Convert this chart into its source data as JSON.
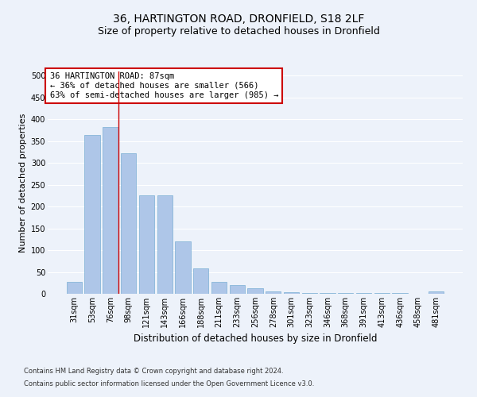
{
  "title1": "36, HARTINGTON ROAD, DRONFIELD, S18 2LF",
  "title2": "Size of property relative to detached houses in Dronfield",
  "xlabel": "Distribution of detached houses by size in Dronfield",
  "ylabel": "Number of detached properties",
  "footer1": "Contains HM Land Registry data © Crown copyright and database right 2024.",
  "footer2": "Contains public sector information licensed under the Open Government Licence v3.0.",
  "annotation_title": "36 HARTINGTON ROAD: 87sqm",
  "annotation_line2": "← 36% of detached houses are smaller (566)",
  "annotation_line3": "63% of semi-detached houses are larger (985) →",
  "property_value": 87,
  "bar_labels": [
    "31sqm",
    "53sqm",
    "76sqm",
    "98sqm",
    "121sqm",
    "143sqm",
    "166sqm",
    "188sqm",
    "211sqm",
    "233sqm",
    "256sqm",
    "278sqm",
    "301sqm",
    "323sqm",
    "346sqm",
    "368sqm",
    "391sqm",
    "413sqm",
    "436sqm",
    "458sqm",
    "481sqm"
  ],
  "bar_values": [
    28,
    365,
    383,
    323,
    225,
    225,
    120,
    58,
    28,
    20,
    13,
    6,
    4,
    2,
    2,
    1,
    1,
    1,
    1,
    0,
    5
  ],
  "bar_color": "#aec6e8",
  "bar_edge_color": "#7aafd4",
  "red_line_x": 2.0,
  "ylim": [
    0,
    510
  ],
  "yticks": [
    0,
    50,
    100,
    150,
    200,
    250,
    300,
    350,
    400,
    450,
    500
  ],
  "bg_color": "#edf2fa",
  "plot_bg_color": "#edf2fa",
  "annotation_box_color": "#ffffff",
  "annotation_box_edge_color": "#cc0000",
  "grid_color": "#ffffff",
  "title_fontsize": 10,
  "subtitle_fontsize": 9,
  "tick_fontsize": 7,
  "ylabel_fontsize": 8,
  "xlabel_fontsize": 8.5,
  "annotation_fontsize": 7.5
}
